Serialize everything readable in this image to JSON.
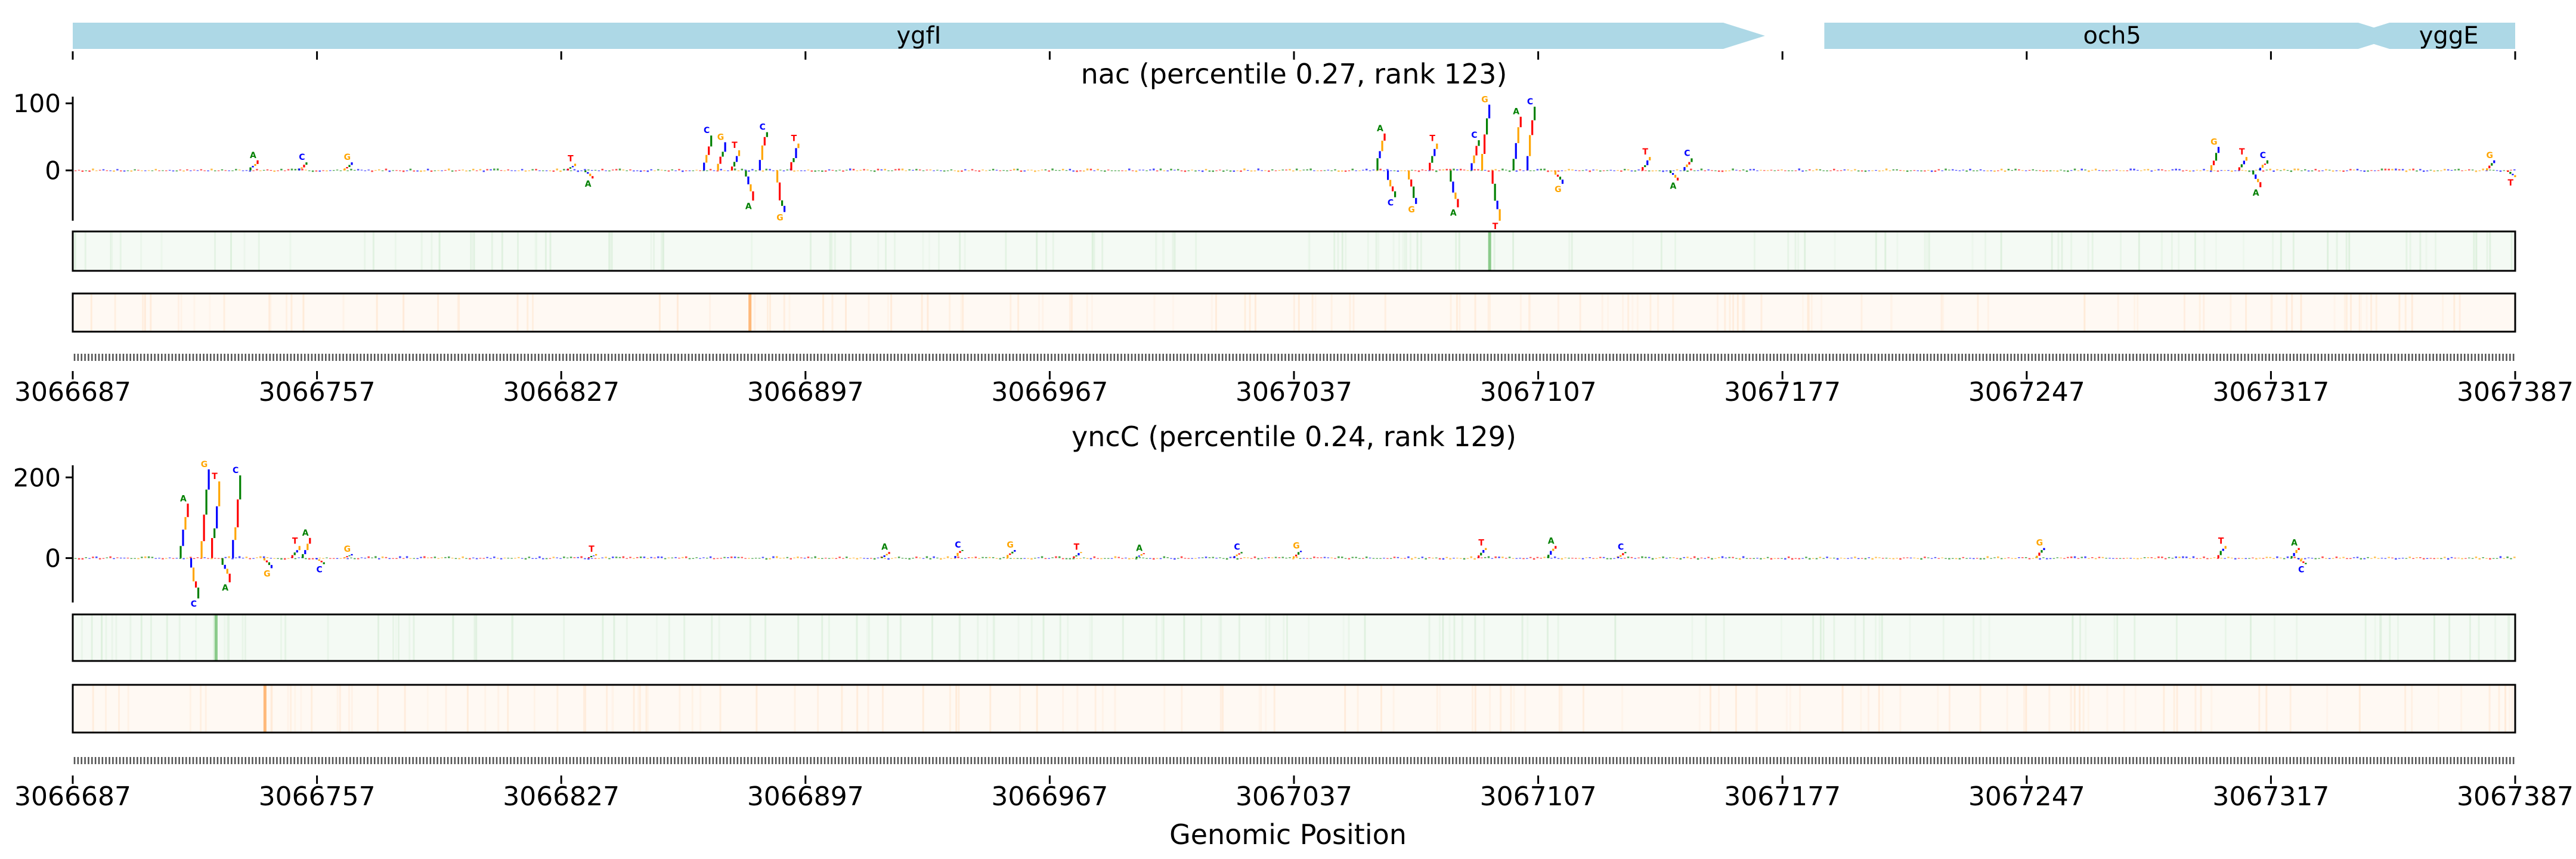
{
  "chart_data": {
    "type": "sequence-attribution",
    "xlabel": "Genomic Position",
    "genomic_range": [
      3066687,
      3067387
    ],
    "x_ticks": [
      3066687,
      3066757,
      3066827,
      3066897,
      3066967,
      3067037,
      3067107,
      3067177,
      3067247,
      3067317,
      3067387
    ],
    "gene_track": {
      "color": "#add8e6",
      "genes": [
        {
          "name": "ygfI",
          "start": 3066687,
          "end": 3067172,
          "strand": "+"
        },
        {
          "name": "och5",
          "start": 3067189,
          "end": 3067354,
          "strand": "+"
        },
        {
          "name": "yggE",
          "start": 3067339,
          "end": 3067387,
          "strand": "-"
        }
      ]
    },
    "panels": [
      {
        "title": "nac (percentile 0.27, rank 123)",
        "ylim": [
          -75,
          110
        ],
        "yticks": [
          0,
          100
        ],
        "peaks": [
          {
            "pos": 3066738,
            "value": 15
          },
          {
            "pos": 3066752,
            "value": 12
          },
          {
            "pos": 3066765,
            "value": 12
          },
          {
            "pos": 3066829,
            "value": 10
          },
          {
            "pos": 3066834,
            "value": -12
          },
          {
            "pos": 3066868,
            "value": 52
          },
          {
            "pos": 3066872,
            "value": 42
          },
          {
            "pos": 3066876,
            "value": 30
          },
          {
            "pos": 3066880,
            "value": -45
          },
          {
            "pos": 3066884,
            "value": 57
          },
          {
            "pos": 3066889,
            "value": -62
          },
          {
            "pos": 3066893,
            "value": 40
          },
          {
            "pos": 3067061,
            "value": 55
          },
          {
            "pos": 3067064,
            "value": -40
          },
          {
            "pos": 3067070,
            "value": -50
          },
          {
            "pos": 3067076,
            "value": 40
          },
          {
            "pos": 3067082,
            "value": -55
          },
          {
            "pos": 3067088,
            "value": 45
          },
          {
            "pos": 3067091,
            "value": 98
          },
          {
            "pos": 3067094,
            "value": -75
          },
          {
            "pos": 3067100,
            "value": 80
          },
          {
            "pos": 3067104,
            "value": 95
          },
          {
            "pos": 3067112,
            "value": -20
          },
          {
            "pos": 3067137,
            "value": 20
          },
          {
            "pos": 3067145,
            "value": -15
          },
          {
            "pos": 3067149,
            "value": 18
          },
          {
            "pos": 3067300,
            "value": 35
          },
          {
            "pos": 3067308,
            "value": 20
          },
          {
            "pos": 3067312,
            "value": -25
          },
          {
            "pos": 3067314,
            "value": 15
          },
          {
            "pos": 3067379,
            "value": 15
          },
          {
            "pos": 3067385,
            "value": -10
          }
        ],
        "bars": [
          {
            "color": "#2ca02c",
            "peak_pos": 3067093
          },
          {
            "color": "#ff7f0e",
            "peak_pos": 3066881
          }
        ]
      },
      {
        "title": "yncC (percentile 0.24, rank 129)",
        "ylim": [
          -110,
          230
        ],
        "yticks": [
          0,
          200
        ],
        "peaks": [
          {
            "pos": 3066718,
            "value": 135
          },
          {
            "pos": 3066721,
            "value": -100
          },
          {
            "pos": 3066724,
            "value": 220
          },
          {
            "pos": 3066727,
            "value": 190
          },
          {
            "pos": 3066730,
            "value": -60
          },
          {
            "pos": 3066733,
            "value": 205
          },
          {
            "pos": 3066742,
            "value": -25
          },
          {
            "pos": 3066750,
            "value": 30
          },
          {
            "pos": 3066753,
            "value": 50
          },
          {
            "pos": 3066757,
            "value": -15
          },
          {
            "pos": 3066765,
            "value": 10
          },
          {
            "pos": 3066835,
            "value": 10
          },
          {
            "pos": 3066919,
            "value": 15
          },
          {
            "pos": 3066940,
            "value": 20
          },
          {
            "pos": 3066955,
            "value": 20
          },
          {
            "pos": 3066974,
            "value": 15
          },
          {
            "pos": 3066992,
            "value": 12
          },
          {
            "pos": 3067020,
            "value": 15
          },
          {
            "pos": 3067037,
            "value": 18
          },
          {
            "pos": 3067090,
            "value": 25
          },
          {
            "pos": 3067110,
            "value": 30
          },
          {
            "pos": 3067130,
            "value": 15
          },
          {
            "pos": 3067250,
            "value": 25
          },
          {
            "pos": 3067302,
            "value": 30
          },
          {
            "pos": 3067323,
            "value": 25
          },
          {
            "pos": 3067325,
            "value": -15
          }
        ],
        "bars": [
          {
            "color": "#2ca02c",
            "peak_pos": 3066728
          },
          {
            "color": "#ff7f0e",
            "peak_pos": 3066742
          }
        ]
      }
    ]
  }
}
